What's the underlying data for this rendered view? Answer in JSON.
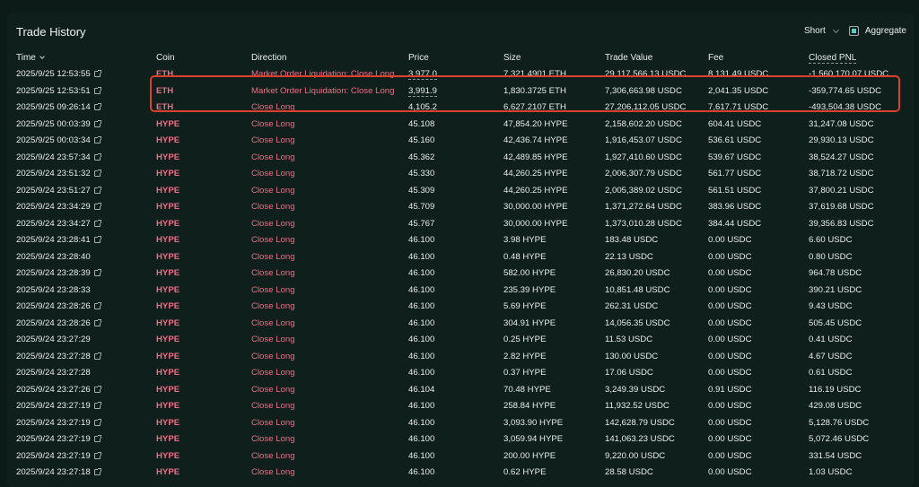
{
  "panel": {
    "title": "Trade History"
  },
  "controls": {
    "side_label": "Short",
    "aggregate_label": "Aggregate",
    "aggregate_checked": true
  },
  "columns": {
    "time": "Time",
    "coin": "Coin",
    "direction": "Direction",
    "price": "Price",
    "size": "Size",
    "trade_value": "Trade Value",
    "fee": "Fee",
    "closed_pnl": "Closed PNL"
  },
  "rows": [
    {
      "time": "2025/9/25 12:53:55",
      "link": true,
      "coin": "ETH",
      "direction": "Market Order Liquidation: Close Long",
      "price": "3,977.0",
      "price_dashed": true,
      "size": "7,321.4901 ETH",
      "trade_value": "29,117,566.13 USDC",
      "fee": "8,131.49 USDC",
      "pnl": "-1,560,170.07 USDC"
    },
    {
      "time": "2025/9/25 12:53:51",
      "link": true,
      "coin": "ETH",
      "direction": "Market Order Liquidation: Close Long",
      "price": "3,991.9",
      "price_dashed": true,
      "size": "1,830.3725 ETH",
      "trade_value": "7,306,663.98 USDC",
      "fee": "2,041.35 USDC",
      "pnl": "-359,774.65 USDC"
    },
    {
      "time": "2025/9/25 09:26:14",
      "link": true,
      "coin": "ETH",
      "direction": "Close Long",
      "price": "4,105.2",
      "size": "6,627.2107 ETH",
      "trade_value": "27,206,112.05 USDC",
      "fee": "7,617.71 USDC",
      "pnl": "-493,504.38 USDC"
    },
    {
      "time": "2025/9/25 00:03:39",
      "link": true,
      "coin": "HYPE",
      "direction": "Close Long",
      "price": "45.108",
      "size": "47,854.20 HYPE",
      "trade_value": "2,158,602.20 USDC",
      "fee": "604.41 USDC",
      "pnl": "31,247.08 USDC"
    },
    {
      "time": "2025/9/25 00:03:34",
      "link": true,
      "coin": "HYPE",
      "direction": "Close Long",
      "price": "45.160",
      "size": "42,436.74 HYPE",
      "trade_value": "1,916,453.07 USDC",
      "fee": "536.61 USDC",
      "pnl": "29,930.13 USDC"
    },
    {
      "time": "2025/9/24 23:57:34",
      "link": true,
      "coin": "HYPE",
      "direction": "Close Long",
      "price": "45.362",
      "size": "42,489.85 HYPE",
      "trade_value": "1,927,410.60 USDC",
      "fee": "539.67 USDC",
      "pnl": "38,524.27 USDC"
    },
    {
      "time": "2025/9/24 23:51:32",
      "link": true,
      "coin": "HYPE",
      "direction": "Close Long",
      "price": "45.330",
      "size": "44,260.25 HYPE",
      "trade_value": "2,006,307.79 USDC",
      "fee": "561.77 USDC",
      "pnl": "38,718.72 USDC"
    },
    {
      "time": "2025/9/24 23:51:27",
      "link": true,
      "coin": "HYPE",
      "direction": "Close Long",
      "price": "45.309",
      "size": "44,260.25 HYPE",
      "trade_value": "2,005,389.02 USDC",
      "fee": "561.51 USDC",
      "pnl": "37,800.21 USDC"
    },
    {
      "time": "2025/9/24 23:34:29",
      "link": true,
      "coin": "HYPE",
      "direction": "Close Long",
      "price": "45.709",
      "size": "30,000.00 HYPE",
      "trade_value": "1,371,272.64 USDC",
      "fee": "383.96 USDC",
      "pnl": "37,619.68 USDC"
    },
    {
      "time": "2025/9/24 23:34:27",
      "link": true,
      "coin": "HYPE",
      "direction": "Close Long",
      "price": "45.767",
      "size": "30,000.00 HYPE",
      "trade_value": "1,373,010.28 USDC",
      "fee": "384.44 USDC",
      "pnl": "39,356.83 USDC"
    },
    {
      "time": "2025/9/24 23:28:41",
      "link": true,
      "coin": "HYPE",
      "direction": "Close Long",
      "price": "46.100",
      "size": "3.98 HYPE",
      "trade_value": "183.48 USDC",
      "fee": "0.00 USDC",
      "pnl": "6.60 USDC"
    },
    {
      "time": "2025/9/24 23:28:40",
      "link": false,
      "coin": "HYPE",
      "direction": "Close Long",
      "price": "46.100",
      "size": "0.48 HYPE",
      "trade_value": "22.13 USDC",
      "fee": "0.00 USDC",
      "pnl": "0.80 USDC"
    },
    {
      "time": "2025/9/24 23:28:39",
      "link": true,
      "coin": "HYPE",
      "direction": "Close Long",
      "price": "46.100",
      "size": "582.00 HYPE",
      "trade_value": "26,830.20 USDC",
      "fee": "0.00 USDC",
      "pnl": "964.78 USDC"
    },
    {
      "time": "2025/9/24 23:28:33",
      "link": false,
      "coin": "HYPE",
      "direction": "Close Long",
      "price": "46.100",
      "size": "235.39 HYPE",
      "trade_value": "10,851.48 USDC",
      "fee": "0.00 USDC",
      "pnl": "390.21 USDC"
    },
    {
      "time": "2025/9/24 23:28:26",
      "link": true,
      "coin": "HYPE",
      "direction": "Close Long",
      "price": "46.100",
      "size": "5.69 HYPE",
      "trade_value": "262.31 USDC",
      "fee": "0.00 USDC",
      "pnl": "9.43 USDC"
    },
    {
      "time": "2025/9/24 23:28:26",
      "link": true,
      "coin": "HYPE",
      "direction": "Close Long",
      "price": "46.100",
      "size": "304.91 HYPE",
      "trade_value": "14,056.35 USDC",
      "fee": "0.00 USDC",
      "pnl": "505.45 USDC"
    },
    {
      "time": "2025/9/24 23:27:29",
      "link": false,
      "coin": "HYPE",
      "direction": "Close Long",
      "price": "46.100",
      "size": "0.25 HYPE",
      "trade_value": "11.53 USDC",
      "fee": "0.00 USDC",
      "pnl": "0.41 USDC"
    },
    {
      "time": "2025/9/24 23:27:28",
      "link": true,
      "coin": "HYPE",
      "direction": "Close Long",
      "price": "46.100",
      "size": "2.82 HYPE",
      "trade_value": "130.00 USDC",
      "fee": "0.00 USDC",
      "pnl": "4.67 USDC"
    },
    {
      "time": "2025/9/24 23:27:28",
      "link": false,
      "coin": "HYPE",
      "direction": "Close Long",
      "price": "46.100",
      "size": "0.37 HYPE",
      "trade_value": "17.06 USDC",
      "fee": "0.00 USDC",
      "pnl": "0.61 USDC"
    },
    {
      "time": "2025/9/24 23:27:26",
      "link": true,
      "coin": "HYPE",
      "direction": "Close Long",
      "price": "46.104",
      "size": "70.48 HYPE",
      "trade_value": "3,249.39 USDC",
      "fee": "0.91 USDC",
      "pnl": "116.19 USDC"
    },
    {
      "time": "2025/9/24 23:27:19",
      "link": true,
      "coin": "HYPE",
      "direction": "Close Long",
      "price": "46.100",
      "size": "258.84 HYPE",
      "trade_value": "11,932.52 USDC",
      "fee": "0.00 USDC",
      "pnl": "429.08 USDC"
    },
    {
      "time": "2025/9/24 23:27:19",
      "link": true,
      "coin": "HYPE",
      "direction": "Close Long",
      "price": "46.100",
      "size": "3,093.90 HYPE",
      "trade_value": "142,628.79 USDC",
      "fee": "0.00 USDC",
      "pnl": "5,128.76 USDC"
    },
    {
      "time": "2025/9/24 23:27:19",
      "link": true,
      "coin": "HYPE",
      "direction": "Close Long",
      "price": "46.100",
      "size": "3,059.94 HYPE",
      "trade_value": "141,063.23 USDC",
      "fee": "0.00 USDC",
      "pnl": "5,072.46 USDC"
    },
    {
      "time": "2025/9/24 23:27:19",
      "link": true,
      "coin": "HYPE",
      "direction": "Close Long",
      "price": "46.100",
      "size": "200.00 HYPE",
      "trade_value": "9,220.00 USDC",
      "fee": "0.00 USDC",
      "pnl": "331.54 USDC"
    },
    {
      "time": "2025/9/24 23:27:18",
      "link": true,
      "coin": "HYPE",
      "direction": "Close Long",
      "price": "46.100",
      "size": "0.62 HYPE",
      "trade_value": "28.58 USDC",
      "fee": "0.00 USDC",
      "pnl": "1.03 USDC"
    }
  ],
  "colors": {
    "negative_direction": "#ed7088",
    "highlight_border": "#d9412c",
    "checkbox_fill": "#50d2c1"
  }
}
